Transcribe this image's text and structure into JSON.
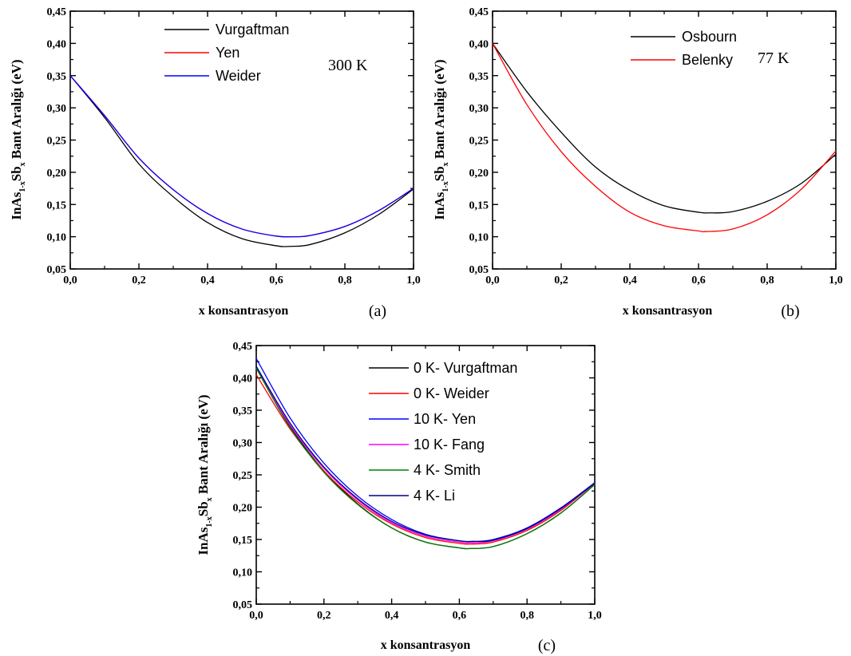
{
  "chart_data": [
    {
      "type": "line",
      "panel_label": "(a)",
      "annotation": "300 K",
      "xlabel": "x konsantrasyon",
      "ylabel": {
        "pre": "InAs",
        "sub1": "1-x",
        "mid": "Sb",
        "sub2": "x",
        "post": " Bant Aralığı (eV)"
      },
      "xlim": [
        0,
        1
      ],
      "ylim": [
        0.05,
        0.45
      ],
      "xticks": [
        "0,0",
        "0,2",
        "0,4",
        "0,6",
        "0,8",
        "1,0"
      ],
      "yticks": [
        "0,05",
        "0,10",
        "0,15",
        "0,20",
        "0,25",
        "0,30",
        "0,35",
        "0,40",
        "0,45"
      ],
      "legend_position": "top-left",
      "series": [
        {
          "name": "Vurgaftman",
          "color": "#000000",
          "x": [
            0,
            0.1,
            0.2,
            0.3,
            0.4,
            0.5,
            0.6,
            0.64,
            0.7,
            0.8,
            0.9,
            1.0
          ],
          "y": [
            0.35,
            0.285,
            0.213,
            0.162,
            0.122,
            0.097,
            0.086,
            0.085,
            0.088,
            0.106,
            0.135,
            0.174
          ]
        },
        {
          "name": "Yen",
          "color": "#ff0000",
          "x": [
            0,
            0.1,
            0.2,
            0.3,
            0.4,
            0.5,
            0.6,
            0.65,
            0.7,
            0.8,
            0.9,
            1.0
          ],
          "y": [
            0.35,
            0.288,
            0.222,
            0.173,
            0.136,
            0.112,
            0.101,
            0.1,
            0.102,
            0.116,
            0.141,
            0.175
          ]
        },
        {
          "name": "Weider",
          "color": "#0000ff",
          "x": [
            0,
            0.1,
            0.2,
            0.3,
            0.4,
            0.5,
            0.6,
            0.65,
            0.7,
            0.8,
            0.9,
            1.0
          ],
          "y": [
            0.35,
            0.288,
            0.222,
            0.173,
            0.136,
            0.112,
            0.101,
            0.1,
            0.102,
            0.116,
            0.141,
            0.175
          ]
        }
      ]
    },
    {
      "type": "line",
      "panel_label": "(b)",
      "annotation": "77 K",
      "xlabel": "x konsantrasyon",
      "ylabel": {
        "pre": "InAs",
        "sub1": "1-x",
        "mid": "Sb",
        "sub2": "x",
        "post": " Bant Aralığı (eV)"
      },
      "xlim": [
        0,
        1
      ],
      "ylim": [
        0.05,
        0.45
      ],
      "xticks": [
        "0,0",
        "0,2",
        "0,4",
        "0,6",
        "0,8",
        "1,0"
      ],
      "yticks": [
        "0,05",
        "0,10",
        "0,15",
        "0,20",
        "0,25",
        "0,30",
        "0,35",
        "0,40",
        "0,45"
      ],
      "legend_position": "top-center",
      "series": [
        {
          "name": "Osbourn",
          "color": "#000000",
          "x": [
            0,
            0.1,
            0.2,
            0.3,
            0.4,
            0.5,
            0.6,
            0.63,
            0.7,
            0.8,
            0.9,
            1.0
          ],
          "y": [
            0.4,
            0.325,
            0.262,
            0.208,
            0.172,
            0.148,
            0.138,
            0.137,
            0.139,
            0.155,
            0.183,
            0.228
          ]
        },
        {
          "name": "Belenky",
          "color": "#ff0000",
          "x": [
            0,
            0.1,
            0.2,
            0.3,
            0.4,
            0.5,
            0.6,
            0.62,
            0.7,
            0.8,
            0.9,
            1.0
          ],
          "y": [
            0.4,
            0.305,
            0.232,
            0.178,
            0.138,
            0.117,
            0.109,
            0.108,
            0.112,
            0.134,
            0.174,
            0.233
          ]
        }
      ]
    },
    {
      "type": "line",
      "panel_label": "(c)",
      "annotation": "",
      "xlabel": "x konsantrasyon",
      "ylabel": {
        "pre": "InAs",
        "sub1": "1-x",
        "mid": "Sb",
        "sub2": "x",
        "post": " Bant Aralığı (eV)"
      },
      "xlim": [
        0,
        1
      ],
      "ylim": [
        0.05,
        0.45
      ],
      "xticks": [
        "0,0",
        "0,2",
        "0,4",
        "0,6",
        "0,8",
        "1,0"
      ],
      "yticks": [
        "0,05",
        "0,10",
        "0,15",
        "0,20",
        "0,25",
        "0,30",
        "0,35",
        "0,40",
        "0,45"
      ],
      "legend_position": "top-right",
      "series": [
        {
          "name": "0 K- Vurgaftman",
          "color": "#000000",
          "x": [
            0,
            0.1,
            0.2,
            0.3,
            0.4,
            0.5,
            0.6,
            0.63,
            0.7,
            0.8,
            0.9,
            1.0
          ],
          "y": [
            0.417,
            0.325,
            0.256,
            0.205,
            0.168,
            0.146,
            0.137,
            0.136,
            0.139,
            0.159,
            0.191,
            0.235
          ]
        },
        {
          "name": "0 K- Weider",
          "color": "#ff0000",
          "x": [
            0,
            0.1,
            0.2,
            0.3,
            0.4,
            0.5,
            0.6,
            0.64,
            0.7,
            0.8,
            0.9,
            1.0
          ],
          "y": [
            0.405,
            0.321,
            0.256,
            0.208,
            0.174,
            0.153,
            0.144,
            0.143,
            0.146,
            0.164,
            0.195,
            0.237
          ]
        },
        {
          "name": "10 K- Yen",
          "color": "#0000ff",
          "x": [
            0,
            0.1,
            0.2,
            0.3,
            0.4,
            0.5,
            0.6,
            0.64,
            0.7,
            0.8,
            0.9,
            1.0
          ],
          "y": [
            0.43,
            0.338,
            0.268,
            0.217,
            0.181,
            0.158,
            0.148,
            0.147,
            0.15,
            0.168,
            0.199,
            0.238
          ]
        },
        {
          "name": "10 K- Fang",
          "color": "#ff00ff",
          "x": [
            0,
            0.1,
            0.2,
            0.3,
            0.4,
            0.5,
            0.6,
            0.64,
            0.7,
            0.8,
            0.9,
            1.0
          ],
          "y": [
            0.415,
            0.327,
            0.26,
            0.211,
            0.176,
            0.155,
            0.146,
            0.145,
            0.148,
            0.166,
            0.197,
            0.237
          ]
        },
        {
          "name": "4 K- Smith",
          "color": "#008000",
          "x": [
            0,
            0.1,
            0.2,
            0.3,
            0.4,
            0.5,
            0.6,
            0.63,
            0.7,
            0.8,
            0.9,
            1.0
          ],
          "y": [
            0.415,
            0.323,
            0.254,
            0.204,
            0.168,
            0.146,
            0.137,
            0.136,
            0.139,
            0.159,
            0.191,
            0.235
          ]
        },
        {
          "name": "4 K- Li",
          "color": "#000080",
          "x": [
            0,
            0.1,
            0.2,
            0.3,
            0.4,
            0.5,
            0.6,
            0.64,
            0.7,
            0.8,
            0.9,
            1.0
          ],
          "y": [
            0.418,
            0.33,
            0.262,
            0.213,
            0.178,
            0.157,
            0.148,
            0.147,
            0.149,
            0.167,
            0.198,
            0.237
          ]
        }
      ]
    }
  ]
}
